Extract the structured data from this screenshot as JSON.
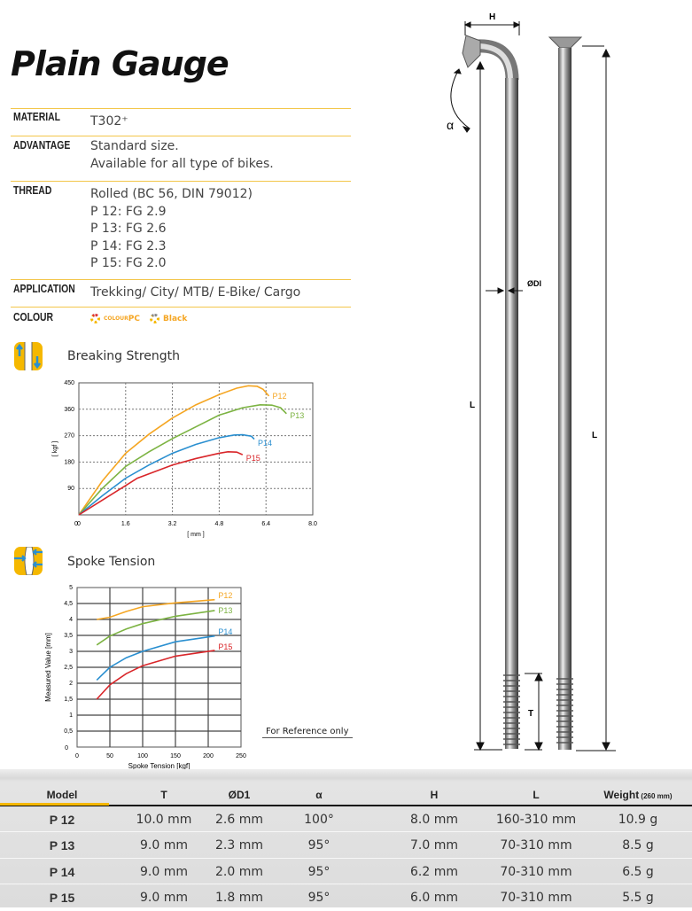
{
  "title": "Plain Gauge",
  "specs": [
    {
      "label": "MATERIAL",
      "lines": [
        "T302⁺"
      ]
    },
    {
      "label": "ADVANTAGE",
      "lines": [
        "Standard size.",
        "Available for all type of bikes."
      ]
    },
    {
      "label": "THREAD",
      "lines": [
        "Rolled (BC 56, DIN 79012)",
        "P 12: FG 2.9",
        "P 13: FG 2.6",
        "P 14: FG 2.3",
        "P 15: FG 2.0"
      ]
    },
    {
      "label": "APPLICATION",
      "lines": [
        "Trekking/ City/ MTB/ E-Bike/ Cargo"
      ]
    },
    {
      "label": "COLOUR",
      "lines": []
    }
  ],
  "colour_options": [
    {
      "prefix": "COLOUR",
      "label": "PC"
    },
    {
      "label": "Black"
    }
  ],
  "colors": {
    "accent": "#f5b800",
    "P12": "#f5a623",
    "P13": "#7cb342",
    "P14": "#2a8fd0",
    "P15": "#d9262a"
  },
  "sections": {
    "breaking": "Breaking Strength",
    "tension": "Spoke Tension",
    "reference": "For Reference only"
  },
  "chart_data": [
    {
      "type": "line",
      "title": "",
      "xlabel": "[ mm ]",
      "ylabel": "[ kgf ]",
      "xlim": [
        0,
        8
      ],
      "ylim": [
        0,
        450
      ],
      "grid": true,
      "legend": "inline-right",
      "xticks": [
        "0",
        "1.6",
        "3.2",
        "4.8",
        "6.4",
        "8.0"
      ],
      "yticks": [
        "90",
        "180",
        "270",
        "360",
        "450"
      ],
      "series": [
        {
          "name": "P12",
          "x": [
            0,
            0.8,
            1.6,
            2.4,
            3.2,
            4.0,
            4.8,
            5.4,
            5.8,
            6.1,
            6.3,
            6.5
          ],
          "y": [
            0,
            115,
            210,
            275,
            330,
            375,
            410,
            432,
            440,
            438,
            428,
            405
          ]
        },
        {
          "name": "P13",
          "x": [
            0,
            0.8,
            1.6,
            2.4,
            3.2,
            4.0,
            4.8,
            5.6,
            6.2,
            6.6,
            6.9,
            7.1
          ],
          "y": [
            0,
            90,
            165,
            215,
            260,
            300,
            340,
            365,
            375,
            374,
            365,
            345
          ]
        },
        {
          "name": "P14",
          "x": [
            0,
            0.8,
            1.6,
            2.4,
            3.2,
            4.0,
            4.8,
            5.3,
            5.6,
            5.9,
            6.0
          ],
          "y": [
            0,
            65,
            125,
            170,
            210,
            240,
            263,
            272,
            273,
            268,
            258
          ]
        },
        {
          "name": "P15",
          "x": [
            0,
            0.8,
            1.6,
            2.0,
            3.2,
            4.0,
            4.8,
            5.1,
            5.4,
            5.6
          ],
          "y": [
            0,
            50,
            100,
            125,
            170,
            192,
            210,
            215,
            214,
            205
          ]
        }
      ]
    },
    {
      "type": "line",
      "title": "",
      "xlabel": "Spoke Tension [kgf]",
      "ylabel": "Measured Value [mm]",
      "xlim": [
        0,
        250
      ],
      "ylim": [
        0,
        5
      ],
      "grid": true,
      "legend": "inline-right",
      "xticks": [
        "0",
        "50",
        "100",
        "150",
        "200",
        "250"
      ],
      "yticks": [
        "0,5",
        "1",
        "1,5",
        "2",
        "2,5",
        "3",
        "3,5",
        "4",
        "4,5",
        "5"
      ],
      "series": [
        {
          "name": "P12",
          "x": [
            30,
            50,
            75,
            100,
            150,
            210
          ],
          "y": [
            4.0,
            4.07,
            4.25,
            4.4,
            4.52,
            4.62
          ]
        },
        {
          "name": "P13",
          "x": [
            30,
            50,
            75,
            100,
            150,
            210
          ],
          "y": [
            3.2,
            3.48,
            3.7,
            3.87,
            4.1,
            4.28
          ]
        },
        {
          "name": "P14",
          "x": [
            30,
            50,
            75,
            100,
            150,
            210
          ],
          "y": [
            2.1,
            2.5,
            2.8,
            3.0,
            3.3,
            3.48
          ]
        },
        {
          "name": "P15",
          "x": [
            30,
            50,
            75,
            100,
            150,
            210
          ],
          "y": [
            1.5,
            1.95,
            2.3,
            2.55,
            2.85,
            3.03
          ]
        }
      ]
    }
  ],
  "diagram": {
    "H": "H",
    "alpha": "α",
    "D": "ØDI",
    "L1": "L",
    "L2": "L",
    "T": "T"
  },
  "table": {
    "headers": [
      "Model",
      "T",
      "ØD1",
      "α",
      "H",
      "L",
      "Weight"
    ],
    "weight_note": "(260 mm)",
    "rows": [
      [
        "P 12",
        "10.0 mm",
        "2.6 mm",
        "100°",
        "8.0 mm",
        "160-310 mm",
        "10.9 g"
      ],
      [
        "P 13",
        "9.0 mm",
        "2.3 mm",
        "95°",
        "7.0 mm",
        "70-310 mm",
        "8.5 g"
      ],
      [
        "P 14",
        "9.0 mm",
        "2.0 mm",
        "95°",
        "6.2 mm",
        "70-310 mm",
        "6.5 g"
      ],
      [
        "P 15",
        "9.0 mm",
        "1.8 mm",
        "95°",
        "6.0 mm",
        "70-310 mm",
        "5.5 g"
      ]
    ]
  }
}
